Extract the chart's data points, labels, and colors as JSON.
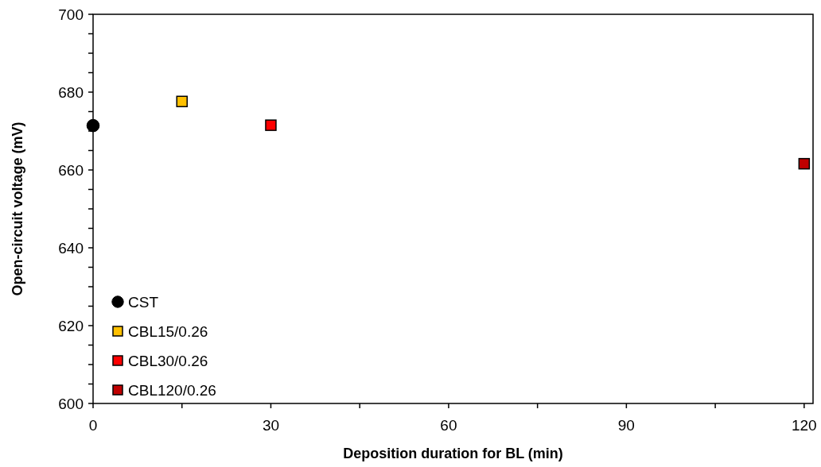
{
  "chart_data": {
    "type": "scatter",
    "xlabel": "Deposition duration  for BL (min)",
    "ylabel": "Open-circuit voltage (mV)",
    "xlim": [
      0,
      121.5
    ],
    "xticks": [
      0,
      {
        "value": 15,
        "label": null
      },
      30,
      {
        "value": 45,
        "label": null
      },
      60,
      {
        "value": 75,
        "label": null
      },
      90,
      {
        "value": 105,
        "label": null
      },
      120
    ],
    "ylim": [
      600,
      700
    ],
    "yticks": [
      600,
      {
        "value": 605,
        "label": null
      },
      {
        "value": 610,
        "label": null
      },
      {
        "value": 615,
        "label": null
      },
      620,
      {
        "value": 625,
        "label": null
      },
      {
        "value": 630,
        "label": null
      },
      {
        "value": 635,
        "label": null
      },
      640,
      {
        "value": 645,
        "label": null
      },
      {
        "value": 650,
        "label": null
      },
      {
        "value": 655,
        "label": null
      },
      660,
      {
        "value": 665,
        "label": null
      },
      {
        "value": 670,
        "label": null
      },
      {
        "value": 675,
        "label": null
      },
      680,
      {
        "value": 685,
        "label": null
      },
      {
        "value": 690,
        "label": null
      },
      {
        "value": 695,
        "label": null
      },
      700
    ],
    "grid": false,
    "legend": "bottom left",
    "series": [
      {
        "name": "CST",
        "color": "#000000",
        "marker": "circle",
        "x": [
          0
        ],
        "values": [
          671.4
        ]
      },
      {
        "name": "CBL15/0.26",
        "color": "#ffc000",
        "marker": "square",
        "x": [
          15
        ],
        "values": [
          677.6
        ]
      },
      {
        "name": "CBL30/0.26",
        "color": "#ff0000",
        "marker": "square",
        "x": [
          30
        ],
        "values": [
          671.5
        ]
      },
      {
        "name": "CBL120/0.26",
        "color": "#c00000",
        "marker": "square",
        "x": [
          120
        ],
        "values": [
          661.6
        ]
      }
    ]
  }
}
